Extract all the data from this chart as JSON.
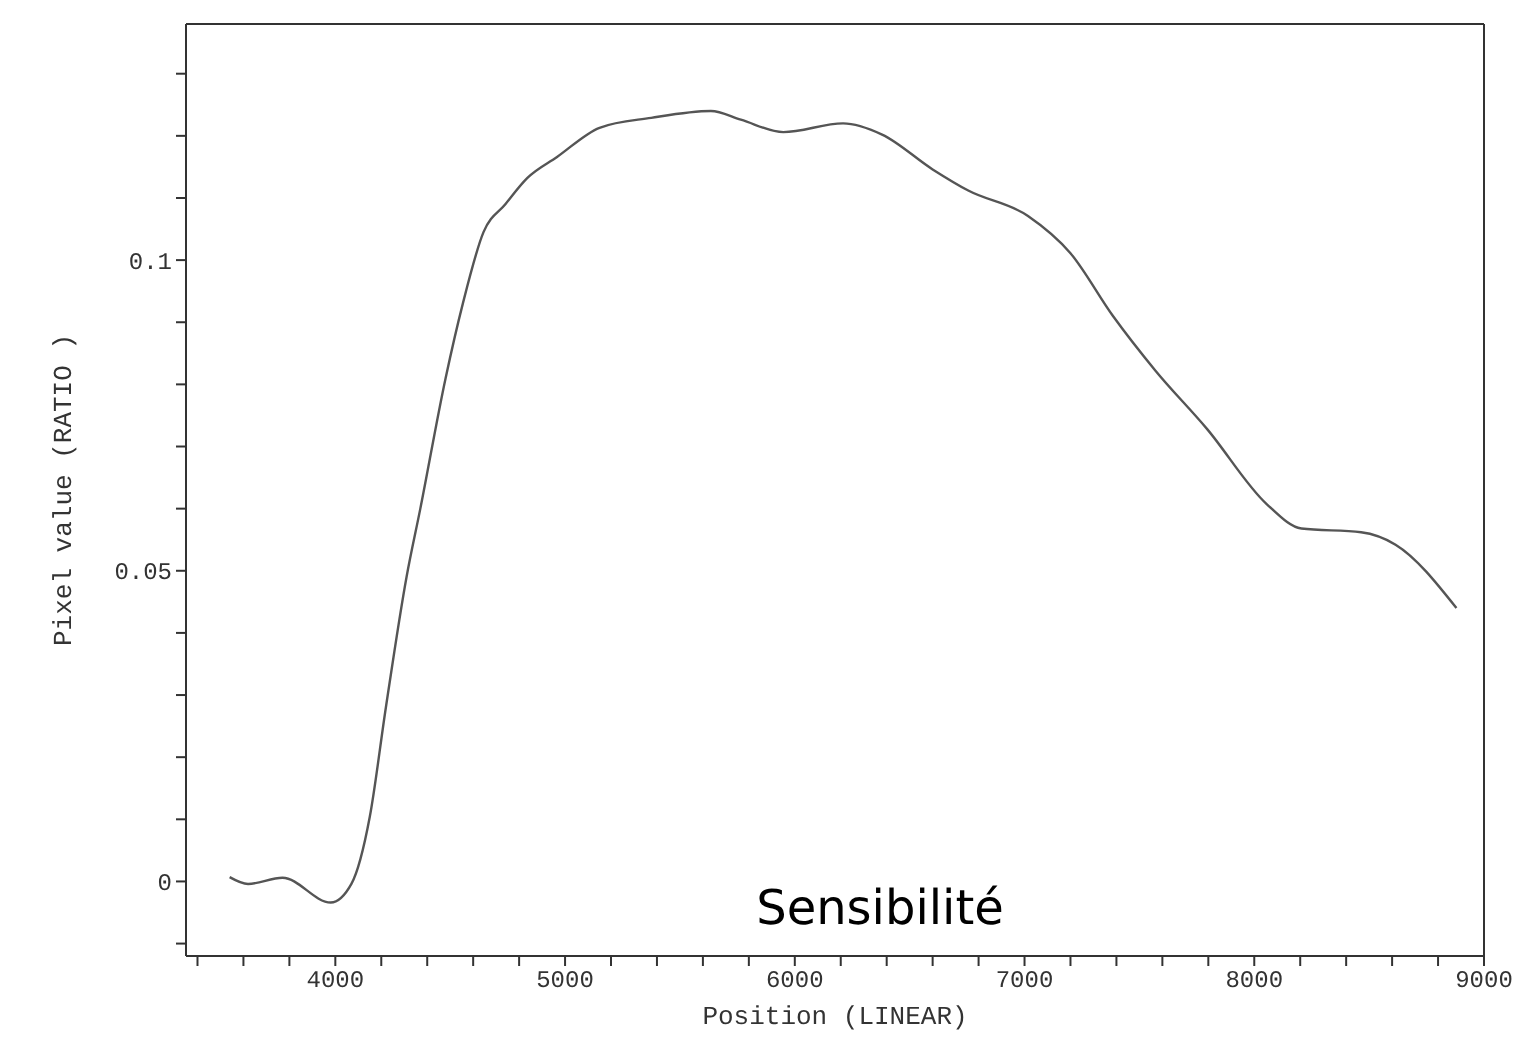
{
  "chart_data": {
    "type": "line",
    "xlabel": "Position (LINEAR)",
    "ylabel": "Pixel value (RATIO )",
    "annotations": [
      "Sensibilité"
    ],
    "xlim": [
      3350,
      9000
    ],
    "xticks": [
      {
        "value": 3400,
        "label": null
      },
      {
        "value": 3600,
        "label": null
      },
      {
        "value": 3800,
        "label": null
      },
      4000,
      {
        "value": 4200,
        "label": null
      },
      {
        "value": 4400,
        "label": null
      },
      {
        "value": 4600,
        "label": null
      },
      {
        "value": 4800,
        "label": null
      },
      5000,
      {
        "value": 5200,
        "label": null
      },
      {
        "value": 5400,
        "label": null
      },
      {
        "value": 5600,
        "label": null
      },
      {
        "value": 5800,
        "label": null
      },
      6000,
      {
        "value": 6200,
        "label": null
      },
      {
        "value": 6400,
        "label": null
      },
      {
        "value": 6600,
        "label": null
      },
      {
        "value": 6800,
        "label": null
      },
      7000,
      {
        "value": 7200,
        "label": null
      },
      {
        "value": 7400,
        "label": null
      },
      {
        "value": 7600,
        "label": null
      },
      {
        "value": 7800,
        "label": null
      },
      8000,
      {
        "value": 8200,
        "label": null
      },
      {
        "value": 8400,
        "label": null
      },
      {
        "value": 8600,
        "label": null
      },
      {
        "value": 8800,
        "label": null
      },
      9000
    ],
    "ylim": [
      -0.012,
      0.138
    ],
    "yticks": [
      {
        "value": -0.01,
        "label": null
      },
      0,
      {
        "value": 0.01,
        "label": null
      },
      {
        "value": 0.02,
        "label": null
      },
      {
        "value": 0.03,
        "label": null
      },
      {
        "value": 0.04,
        "label": null
      },
      0.05,
      {
        "value": 0.06,
        "label": null
      },
      {
        "value": 0.07,
        "label": null
      },
      {
        "value": 0.08,
        "label": null
      },
      {
        "value": 0.09,
        "label": null
      },
      0.1,
      {
        "value": 0.11,
        "label": null
      },
      {
        "value": 0.12,
        "label": null
      },
      {
        "value": 0.13,
        "label": null
      }
    ],
    "series": [
      {
        "color": "#555555",
        "x": [
          3540,
          3620,
          3770,
          3980,
          4070,
          4150,
          4220,
          4310,
          4370,
          4480,
          4555,
          4645,
          4740,
          4835,
          4965,
          5150,
          5375,
          5635,
          5765,
          5950,
          6210,
          6380,
          6600,
          6755,
          7015,
          7200,
          7385,
          7570,
          7795,
          8055,
          8205,
          8465,
          8615,
          8880
        ],
        "values": [
          0.0007,
          -0.0004,
          0.0006,
          -0.0034,
          -0.0004,
          0.0104,
          0.028,
          0.049,
          0.06,
          0.081,
          0.093,
          0.1045,
          0.109,
          0.1132,
          0.1166,
          0.1213,
          0.1229,
          0.124,
          0.1226,
          0.1206,
          0.122,
          0.1202,
          0.1146,
          0.1112,
          0.1071,
          0.1011,
          0.091,
          0.0822,
          0.0728,
          0.0607,
          0.0568,
          0.0562,
          0.0542,
          0.044
        ]
      }
    ]
  }
}
